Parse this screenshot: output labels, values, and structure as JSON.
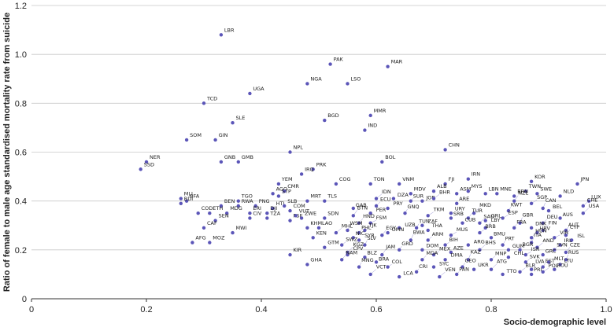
{
  "chart_data": {
    "type": "scatter",
    "title": "",
    "xlabel": "Socio-demographic level",
    "ylabel": "Ratio of female to male age standardised mortality rate from suicide",
    "xlim": [
      0,
      1.0
    ],
    "ylim": [
      0,
      1.2
    ],
    "xticks": [
      "0",
      "0.2",
      "0.4",
      "0.6",
      "0.8",
      "1.0"
    ],
    "yticks": [
      "0",
      "0.2",
      "0.4",
      "0.6",
      "0.8",
      "1.0",
      "1.2"
    ],
    "grid": "horizontal",
    "marker_color": "#5b55b8",
    "points": [
      {
        "label": "LBR",
        "x": 0.33,
        "y": 1.08
      },
      {
        "label": "PAK",
        "x": 0.52,
        "y": 0.96
      },
      {
        "label": "MAR",
        "x": 0.62,
        "y": 0.95
      },
      {
        "label": "NGA",
        "x": 0.48,
        "y": 0.88
      },
      {
        "label": "LSO",
        "x": 0.55,
        "y": 0.88
      },
      {
        "label": "UGA",
        "x": 0.38,
        "y": 0.84
      },
      {
        "label": "TCD",
        "x": 0.3,
        "y": 0.8
      },
      {
        "label": "MMR",
        "x": 0.59,
        "y": 0.75
      },
      {
        "label": "SLE",
        "x": 0.35,
        "y": 0.72
      },
      {
        "label": "BGD",
        "x": 0.51,
        "y": 0.73
      },
      {
        "label": "IND",
        "x": 0.58,
        "y": 0.69
      },
      {
        "label": "SOM",
        "x": 0.27,
        "y": 0.65
      },
      {
        "label": "GIN",
        "x": 0.32,
        "y": 0.65
      },
      {
        "label": "CHN",
        "x": 0.72,
        "y": 0.61
      },
      {
        "label": "NPL",
        "x": 0.45,
        "y": 0.6
      },
      {
        "label": "NER",
        "x": 0.2,
        "y": 0.56
      },
      {
        "label": "GNB",
        "x": 0.33,
        "y": 0.56
      },
      {
        "label": "GMB",
        "x": 0.36,
        "y": 0.56
      },
      {
        "label": "BOL",
        "x": 0.61,
        "y": 0.56
      },
      {
        "label": "SSD",
        "x": 0.19,
        "y": 0.53
      },
      {
        "label": "PRK",
        "x": 0.49,
        "y": 0.53
      },
      {
        "label": "IRQ",
        "x": 0.47,
        "y": 0.51
      },
      {
        "label": "YEM",
        "x": 0.43,
        "y": 0.47
      },
      {
        "label": "COG",
        "x": 0.53,
        "y": 0.47
      },
      {
        "label": "TON",
        "x": 0.59,
        "y": 0.47
      },
      {
        "label": "VNM",
        "x": 0.64,
        "y": 0.47
      },
      {
        "label": "IRN",
        "x": 0.76,
        "y": 0.49
      },
      {
        "label": "KOR",
        "x": 0.87,
        "y": 0.48
      },
      {
        "label": "JPN",
        "x": 0.95,
        "y": 0.47
      },
      {
        "label": "FJI",
        "x": 0.72,
        "y": 0.47
      },
      {
        "label": "AGO",
        "x": 0.42,
        "y": 0.43
      },
      {
        "label": "CMR",
        "x": 0.44,
        "y": 0.44
      },
      {
        "label": "STP",
        "x": 0.43,
        "y": 0.42
      },
      {
        "label": "ALB",
        "x": 0.7,
        "y": 0.44
      },
      {
        "label": "MDV",
        "x": 0.66,
        "y": 0.43
      },
      {
        "label": "ASM",
        "x": 0.74,
        "y": 0.43
      },
      {
        "label": "MYS",
        "x": 0.76,
        "y": 0.44
      },
      {
        "label": "LBN",
        "x": 0.79,
        "y": 0.43
      },
      {
        "label": "MNE",
        "x": 0.81,
        "y": 0.43
      },
      {
        "label": "TWN",
        "x": 0.86,
        "y": 0.44
      },
      {
        "label": "SWE",
        "x": 0.88,
        "y": 0.43
      },
      {
        "label": "BRN",
        "x": 0.84,
        "y": 0.42
      },
      {
        "label": "NLD",
        "x": 0.92,
        "y": 0.42
      },
      {
        "label": "MLI",
        "x": 0.26,
        "y": 0.41
      },
      {
        "label": "BFA",
        "x": 0.27,
        "y": 0.4
      },
      {
        "label": "BDI",
        "x": 0.26,
        "y": 0.39
      },
      {
        "label": "TGO",
        "x": 0.36,
        "y": 0.4
      },
      {
        "label": "MRT",
        "x": 0.48,
        "y": 0.4
      },
      {
        "label": "TLS",
        "x": 0.51,
        "y": 0.4
      },
      {
        "label": "DZA",
        "x": 0.63,
        "y": 0.41
      },
      {
        "label": "IDN",
        "x": 0.6,
        "y": 0.41
      },
      {
        "label": "SUR",
        "x": 0.66,
        "y": 0.4
      },
      {
        "label": "JOR",
        "x": 0.68,
        "y": 0.4
      },
      {
        "label": "BHR",
        "x": 0.7,
        "y": 0.41
      },
      {
        "label": "ARE",
        "x": 0.74,
        "y": 0.39
      },
      {
        "label": "NZL",
        "x": 0.84,
        "y": 0.4
      },
      {
        "label": "SGP",
        "x": 0.87,
        "y": 0.39
      },
      {
        "label": "LUX",
        "x": 0.97,
        "y": 0.4
      },
      {
        "label": "BEN",
        "x": 0.33,
        "y": 0.38
      },
      {
        "label": "RWA",
        "x": 0.36,
        "y": 0.38
      },
      {
        "label": "PNG",
        "x": 0.39,
        "y": 0.38
      },
      {
        "label": "HTI",
        "x": 0.42,
        "y": 0.37
      },
      {
        "label": "SLB",
        "x": 0.44,
        "y": 0.38
      },
      {
        "label": "GAB",
        "x": 0.56,
        "y": 0.37
      },
      {
        "label": "ECU",
        "x": 0.6,
        "y": 0.38
      },
      {
        "label": "PRY",
        "x": 0.62,
        "y": 0.37
      },
      {
        "label": "CAN",
        "x": 0.89,
        "y": 0.37
      },
      {
        "label": "CHE",
        "x": 0.96,
        "y": 0.38
      },
      {
        "label": "COD",
        "x": 0.29,
        "y": 0.35
      },
      {
        "label": "ETH",
        "x": 0.31,
        "y": 0.35
      },
      {
        "label": "MDG",
        "x": 0.34,
        "y": 0.35
      },
      {
        "label": "ERI",
        "x": 0.38,
        "y": 0.35
      },
      {
        "label": "DJI",
        "x": 0.41,
        "y": 0.35
      },
      {
        "label": "COM",
        "x": 0.45,
        "y": 0.36
      },
      {
        "label": "PER",
        "x": 0.59,
        "y": 0.35
      },
      {
        "label": "GNQ",
        "x": 0.65,
        "y": 0.35
      },
      {
        "label": "URY",
        "x": 0.73,
        "y": 0.35
      },
      {
        "label": "MKD",
        "x": 0.77,
        "y": 0.35
      },
      {
        "label": "KWT",
        "x": 0.83,
        "y": 0.36
      },
      {
        "label": "BEL",
        "x": 0.9,
        "y": 0.36
      },
      {
        "label": "USA",
        "x": 0.96,
        "y": 0.35
      },
      {
        "label": "SEN",
        "x": 0.32,
        "y": 0.32
      },
      {
        "label": "CIV",
        "x": 0.38,
        "y": 0.33
      },
      {
        "label": "TZA",
        "x": 0.41,
        "y": 0.33
      },
      {
        "label": "PSE",
        "x": 0.45,
        "y": 0.32
      },
      {
        "label": "ZWE",
        "x": 0.47,
        "y": 0.33
      },
      {
        "label": "VUT",
        "x": 0.46,
        "y": 0.34
      },
      {
        "label": "SDN",
        "x": 0.51,
        "y": 0.33
      },
      {
        "label": "BTN",
        "x": 0.56,
        "y": 0.34
      },
      {
        "label": "TKM",
        "x": 0.69,
        "y": 0.34
      },
      {
        "label": "SRB",
        "x": 0.73,
        "y": 0.33
      },
      {
        "label": "TUR",
        "x": 0.76,
        "y": 0.33
      },
      {
        "label": "ESP",
        "x": 0.82,
        "y": 0.33
      },
      {
        "label": "AUS",
        "x": 0.92,
        "y": 0.33
      },
      {
        "label": "HND",
        "x": 0.57,
        "y": 0.31
      },
      {
        "label": "FSM",
        "x": 0.59,
        "y": 0.31
      },
      {
        "label": "CUB",
        "x": 0.75,
        "y": 0.31
      },
      {
        "label": "SAU",
        "x": 0.78,
        "y": 0.31
      },
      {
        "label": "GRL",
        "x": 0.79,
        "y": 0.32
      },
      {
        "label": "GBR",
        "x": 0.85,
        "y": 0.31
      },
      {
        "label": "DEU",
        "x": 0.89,
        "y": 0.31
      },
      {
        "label": "ZAF",
        "x": 0.68,
        "y": 0.3
      },
      {
        "label": "CAF",
        "x": 0.3,
        "y": 0.29
      },
      {
        "label": "KHM",
        "x": 0.48,
        "y": 0.29
      },
      {
        "label": "LAO",
        "x": 0.5,
        "y": 0.29
      },
      {
        "label": "WSM",
        "x": 0.55,
        "y": 0.28
      },
      {
        "label": "TJK",
        "x": 0.58,
        "y": 0.28
      },
      {
        "label": "UZB",
        "x": 0.64,
        "y": 0.29
      },
      {
        "label": "TUN",
        "x": 0.67,
        "y": 0.29
      },
      {
        "label": "THA",
        "x": 0.69,
        "y": 0.28
      },
      {
        "label": "LBY",
        "x": 0.79,
        "y": 0.29
      },
      {
        "label": "FRA",
        "x": 0.84,
        "y": 0.29
      },
      {
        "label": "DNK",
        "x": 0.87,
        "y": 0.29
      },
      {
        "label": "FIN",
        "x": 0.89,
        "y": 0.28
      },
      {
        "label": "AUT",
        "x": 0.93,
        "y": 0.28
      },
      {
        "label": "MWI",
        "x": 0.35,
        "y": 0.27
      },
      {
        "label": "MHL",
        "x": 0.53,
        "y": 0.27
      },
      {
        "label": "PHL",
        "x": 0.57,
        "y": 0.27
      },
      {
        "label": "OMN",
        "x": 0.62,
        "y": 0.27
      },
      {
        "label": "BRB",
        "x": 0.78,
        "y": 0.27
      },
      {
        "label": "HRV",
        "x": 0.88,
        "y": 0.27
      },
      {
        "label": "CYP",
        "x": 0.93,
        "y": 0.26
      },
      {
        "label": "KEN",
        "x": 0.49,
        "y": 0.25
      },
      {
        "label": "NIC",
        "x": 0.56,
        "y": 0.25
      },
      {
        "label": "EGY",
        "x": 0.61,
        "y": 0.26
      },
      {
        "label": "MUS",
        "x": 0.73,
        "y": 0.26
      },
      {
        "label": "BMU",
        "x": 0.8,
        "y": 0.25
      },
      {
        "label": "HUN",
        "x": 0.87,
        "y": 0.25
      },
      {
        "label": "VIR",
        "x": 0.91,
        "y": 0.25
      },
      {
        "label": "AFG",
        "x": 0.28,
        "y": 0.23
      },
      {
        "label": "MOZ",
        "x": 0.31,
        "y": 0.23
      },
      {
        "label": "SYR",
        "x": 0.57,
        "y": 0.24
      },
      {
        "label": "BWA",
        "x": 0.66,
        "y": 0.24
      },
      {
        "label": "ARM",
        "x": 0.69,
        "y": 0.24
      },
      {
        "label": "ISL",
        "x": 0.94,
        "y": 0.24
      },
      {
        "label": "ITA",
        "x": 0.87,
        "y": 0.23
      },
      {
        "label": "SWZ",
        "x": 0.54,
        "y": 0.22
      },
      {
        "label": "GTM",
        "x": 0.51,
        "y": 0.21
      },
      {
        "label": "SLV",
        "x": 0.58,
        "y": 0.22
      },
      {
        "label": "BIH",
        "x": 0.72,
        "y": 0.22
      },
      {
        "label": "ARG",
        "x": 0.76,
        "y": 0.22
      },
      {
        "label": "PRT",
        "x": 0.82,
        "y": 0.22
      },
      {
        "label": "IRL",
        "x": 0.92,
        "y": 0.22
      },
      {
        "label": "KGZ",
        "x": 0.55,
        "y": 0.19
      },
      {
        "label": "GRD",
        "x": 0.64,
        "y": 0.2
      },
      {
        "label": "DOM",
        "x": 0.68,
        "y": 0.2
      },
      {
        "label": "BHS",
        "x": 0.78,
        "y": 0.2
      },
      {
        "label": "BGR",
        "x": 0.85,
        "y": 0.2
      },
      {
        "label": "GUM",
        "x": 0.83,
        "y": 0.2
      },
      {
        "label": "AND",
        "x": 0.88,
        "y": 0.21
      },
      {
        "label": "SVN",
        "x": 0.91,
        "y": 0.2
      },
      {
        "label": "KIR",
        "x": 0.45,
        "y": 0.18
      },
      {
        "label": "CPV",
        "x": 0.55,
        "y": 0.18
      },
      {
        "label": "BLZ",
        "x": 0.58,
        "y": 0.17
      },
      {
        "label": "JAM",
        "x": 0.61,
        "y": 0.18
      },
      {
        "label": "MEX",
        "x": 0.7,
        "y": 0.18
      },
      {
        "label": "AZE",
        "x": 0.73,
        "y": 0.19
      },
      {
        "label": "CZE",
        "x": 0.93,
        "y": 0.19
      },
      {
        "label": "ISR",
        "x": 0.86,
        "y": 0.18
      },
      {
        "label": "GRC",
        "x": 0.89,
        "y": 0.18
      },
      {
        "label": "NAM",
        "x": 0.54,
        "y": 0.16
      },
      {
        "label": "GHA",
        "x": 0.48,
        "y": 0.14
      },
      {
        "label": "BRA",
        "x": 0.6,
        "y": 0.15
      },
      {
        "label": "MDA",
        "x": 0.68,
        "y": 0.16
      },
      {
        "label": "DMA",
        "x": 0.72,
        "y": 0.16
      },
      {
        "label": "KAZ",
        "x": 0.76,
        "y": 0.16
      },
      {
        "label": "MNP",
        "x": 0.8,
        "y": 0.16
      },
      {
        "label": "CHL",
        "x": 0.83,
        "y": 0.17
      },
      {
        "label": "RUS",
        "x": 0.93,
        "y": 0.16
      },
      {
        "label": "SVK",
        "x": 0.86,
        "y": 0.15
      },
      {
        "label": "MLT",
        "x": 0.9,
        "y": 0.15
      },
      {
        "label": "MNG",
        "x": 0.57,
        "y": 0.13
      },
      {
        "label": "COL",
        "x": 0.62,
        "y": 0.13
      },
      {
        "label": "SYC",
        "x": 0.7,
        "y": 0.13
      },
      {
        "label": "GEO",
        "x": 0.75,
        "y": 0.13
      },
      {
        "label": "UKR",
        "x": 0.77,
        "y": 0.12
      },
      {
        "label": "ATG",
        "x": 0.8,
        "y": 0.12
      },
      {
        "label": "EST",
        "x": 0.89,
        "y": 0.13
      },
      {
        "label": "LTU",
        "x": 0.92,
        "y": 0.14
      },
      {
        "label": "VCT",
        "x": 0.59,
        "y": 0.1
      },
      {
        "label": "CRI",
        "x": 0.67,
        "y": 0.11
      },
      {
        "label": "LCA",
        "x": 0.64,
        "y": 0.09
      },
      {
        "label": "VEN",
        "x": 0.71,
        "y": 0.09
      },
      {
        "label": "PAN",
        "x": 0.74,
        "y": 0.1
      },
      {
        "label": "TTO",
        "x": 0.82,
        "y": 0.1
      },
      {
        "label": "BLR",
        "x": 0.85,
        "y": 0.11
      },
      {
        "label": "PRI",
        "x": 0.87,
        "y": 0.1
      },
      {
        "label": "LVA",
        "x": 0.87,
        "y": 0.12
      },
      {
        "label": "POL",
        "x": 0.89,
        "y": 0.11
      },
      {
        "label": "ROU",
        "x": 0.91,
        "y": 0.12
      }
    ]
  }
}
